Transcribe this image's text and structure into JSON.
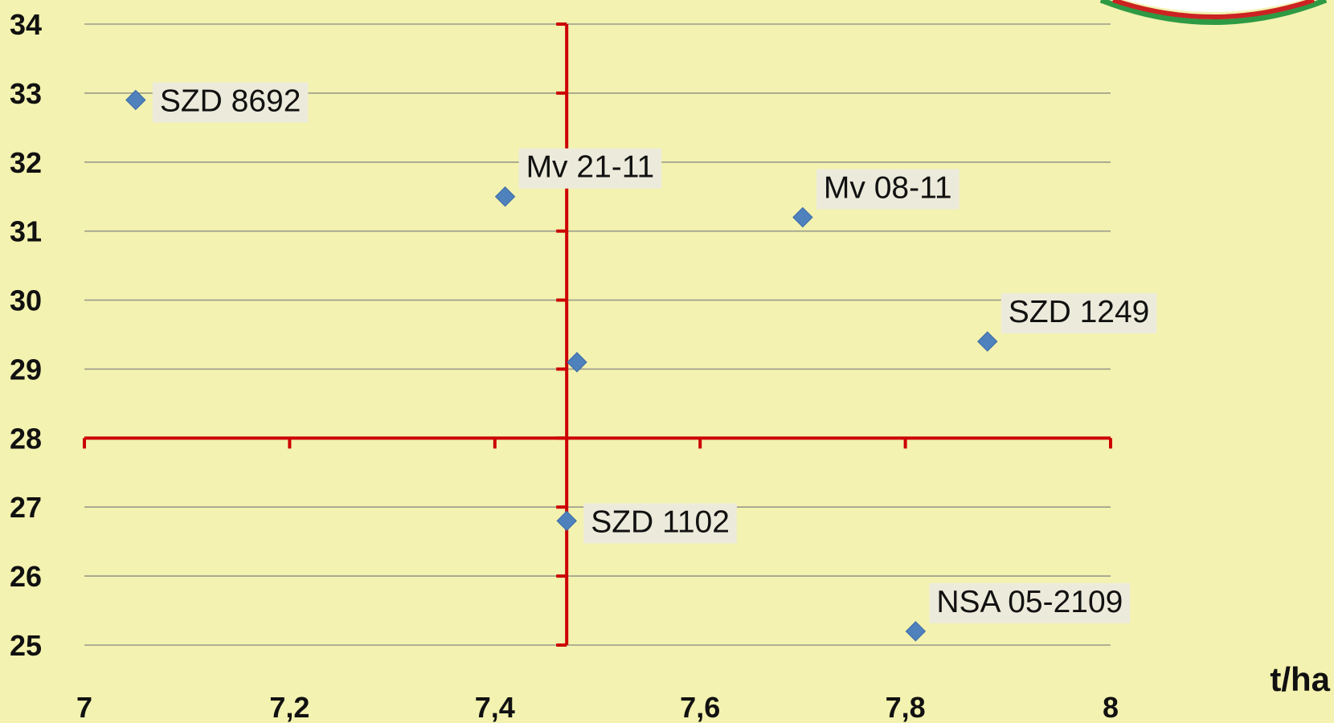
{
  "colors": {
    "background": "#f3f2b0",
    "marker": "#4f81bd",
    "axis": "#cc0000",
    "grid": "#9a9a8a",
    "label_bg": "#ecebdb"
  },
  "chart_data": {
    "type": "scatter",
    "title": "",
    "xlabel": "t/ha",
    "ylabel": "",
    "xlim": [
      7,
      8
    ],
    "ylim": [
      25,
      34
    ],
    "x_ticks": [
      "7",
      "7,2",
      "7,4",
      "7,6",
      "7,8",
      "8"
    ],
    "y_ticks": [
      "25",
      "26",
      "27",
      "28",
      "29",
      "30",
      "31",
      "32",
      "33",
      "34"
    ],
    "y_axis_label_values": [
      25,
      26,
      27,
      28,
      29,
      30,
      31,
      32,
      33,
      34
    ],
    "x_axis_label_values": [
      7,
      7.2,
      7.4,
      7.6,
      7.8,
      8
    ],
    "crosshair": {
      "x": 7.47,
      "y": 28
    },
    "grid": true,
    "legend": "none",
    "marker": "diamond",
    "points": [
      {
        "label": "SZD 8692",
        "x": 7.05,
        "y": 32.9,
        "label_pos": "right"
      },
      {
        "label": "Mv 21-11",
        "x": 7.41,
        "y": 31.5,
        "label_pos": "upper-right"
      },
      {
        "label": "Mv 08-11",
        "x": 7.7,
        "y": 31.2,
        "label_pos": "upper-right"
      },
      {
        "label": "SZD 1249",
        "x": 7.88,
        "y": 29.4,
        "label_pos": "upper-right"
      },
      {
        "label": "",
        "x": 7.48,
        "y": 29.1,
        "label_pos": "none"
      },
      {
        "label": "SZD 1102",
        "x": 7.47,
        "y": 26.8,
        "label_pos": "right"
      },
      {
        "label": "NSA 05-2109",
        "x": 7.81,
        "y": 25.2,
        "label_pos": "upper-right"
      }
    ]
  }
}
